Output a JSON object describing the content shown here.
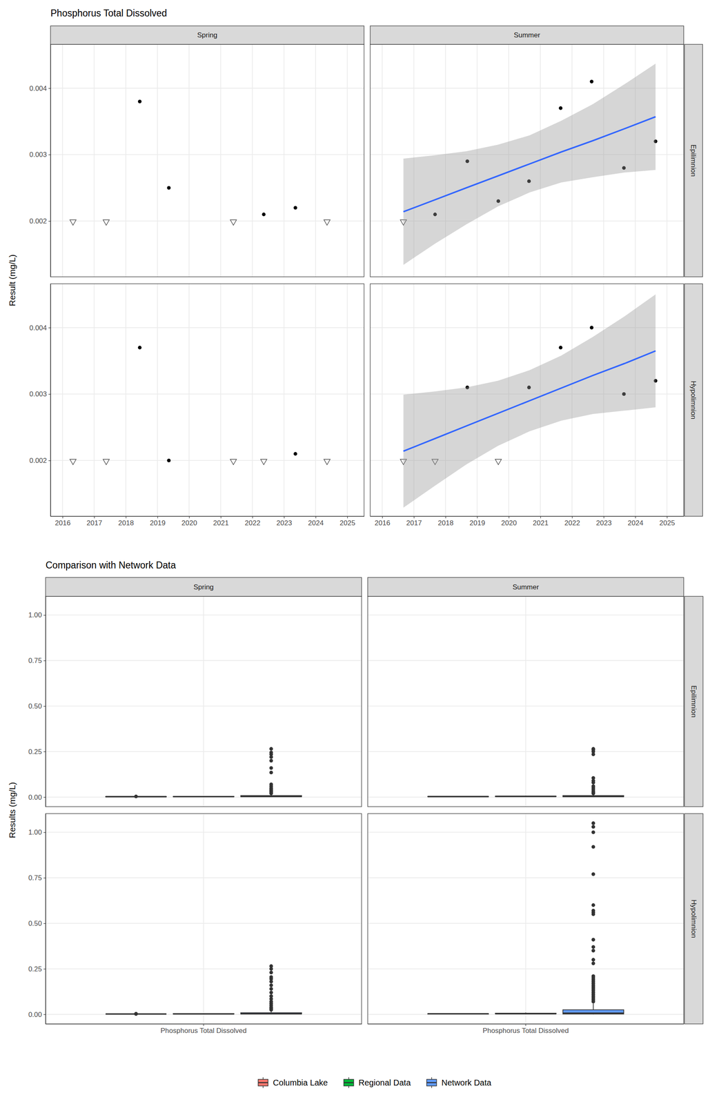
{
  "chart_data": [
    {
      "type": "scatter",
      "title": "Phosphorus Total Dissolved",
      "y_label": "Result (mg/L)",
      "facet_cols": [
        "Spring",
        "Summer"
      ],
      "facet_rows": [
        "Epilimnion",
        "Hypolimnion"
      ],
      "xlim": [
        2015.62,
        2025.53
      ],
      "xticks": [
        2016,
        2017,
        2018,
        2019,
        2020,
        2021,
        2022,
        2023,
        2024,
        2025
      ],
      "ylim": [
        0.00116,
        0.00466
      ],
      "yticks": [
        0.002,
        0.003,
        0.004
      ],
      "grid": true,
      "panels": [
        [
          {
            "series": [
              {
                "type": "scatter",
                "marker": "triangle-down",
                "color": "#4D4D4D",
                "x": [
                  2016.33,
                  2017.38,
                  2021.4,
                  2024.36
                ],
                "values": [
                  0.002,
                  0.002,
                  0.002,
                  0.002
                ]
              },
              {
                "type": "scatter",
                "marker": "circle",
                "color": "#000000",
                "x": [
                  2018.44,
                  2019.36,
                  2022.36,
                  2023.36
                ],
                "values": [
                  0.0038,
                  0.0025,
                  0.0021,
                  0.0022
                ]
              }
            ]
          },
          {
            "series": [
              {
                "type": "scatter",
                "marker": "triangle-down",
                "color": "#4D4D4D",
                "x": [
                  2016.67
                ],
                "values": [
                  0.002
                ]
              },
              {
                "type": "scatter",
                "marker": "circle",
                "color": "#000000",
                "x": [
                  2017.67,
                  2018.69,
                  2019.67,
                  2020.64,
                  2021.64,
                  2022.62,
                  2023.64,
                  2024.64
                ],
                "values": [
                  0.0021,
                  0.0029,
                  0.0023,
                  0.0026,
                  0.0037,
                  0.0041,
                  0.0028,
                  0.0032
                ]
              },
              {
                "type": "line",
                "color": "#3366FF",
                "x": [
                  2016.67,
                  2017.67,
                  2018.66,
                  2019.66,
                  2020.66,
                  2021.66,
                  2022.66,
                  2023.66,
                  2024.64
                ],
                "values": [
                  0.00214,
                  0.00232,
                  0.0025,
                  0.00268,
                  0.00286,
                  0.00304,
                  0.00321,
                  0.00339,
                  0.00357
                ],
                "lower": [
                  0.00134,
                  0.00166,
                  0.00195,
                  0.00222,
                  0.00243,
                  0.00258,
                  0.00266,
                  0.00273,
                  0.00277
                ],
                "upper": [
                  0.00294,
                  0.00299,
                  0.00305,
                  0.00315,
                  0.00329,
                  0.00351,
                  0.00376,
                  0.00406,
                  0.00437
                ]
              }
            ]
          }
        ],
        [
          {
            "series": [
              {
                "type": "scatter",
                "marker": "triangle-down",
                "color": "#4D4D4D",
                "x": [
                  2016.33,
                  2017.38,
                  2021.4,
                  2022.36,
                  2024.36
                ],
                "values": [
                  0.002,
                  0.002,
                  0.002,
                  0.002,
                  0.002
                ]
              },
              {
                "type": "scatter",
                "marker": "circle",
                "color": "#000000",
                "x": [
                  2018.44,
                  2019.36,
                  2023.36
                ],
                "values": [
                  0.0037,
                  0.002,
                  0.0021
                ]
              }
            ]
          },
          {
            "series": [
              {
                "type": "scatter",
                "marker": "triangle-down",
                "color": "#4D4D4D",
                "x": [
                  2016.67,
                  2017.67,
                  2019.67
                ],
                "values": [
                  0.002,
                  0.002,
                  0.002
                ]
              },
              {
                "type": "scatter",
                "marker": "circle",
                "color": "#000000",
                "x": [
                  2018.69,
                  2020.64,
                  2021.64,
                  2022.62,
                  2023.64,
                  2024.64
                ],
                "values": [
                  0.0031,
                  0.0031,
                  0.0037,
                  0.004,
                  0.003,
                  0.0032
                ]
              },
              {
                "type": "line",
                "color": "#3366FF",
                "x": [
                  2016.67,
                  2017.67,
                  2018.66,
                  2019.66,
                  2020.66,
                  2021.66,
                  2022.66,
                  2023.66,
                  2024.64
                ],
                "values": [
                  0.00214,
                  0.00233,
                  0.00252,
                  0.00271,
                  0.0029,
                  0.00309,
                  0.00328,
                  0.00346,
                  0.00365
                ],
                "lower": [
                  0.00129,
                  0.00162,
                  0.00194,
                  0.00222,
                  0.00244,
                  0.0026,
                  0.0027,
                  0.00275,
                  0.0028
                ],
                "upper": [
                  0.00299,
                  0.00304,
                  0.0031,
                  0.0032,
                  0.00336,
                  0.00358,
                  0.00386,
                  0.00417,
                  0.0045
                ]
              }
            ]
          }
        ]
      ]
    },
    {
      "type": "box",
      "title": "Comparison with Network Data",
      "y_label": "Results (mg/L)",
      "facet_cols": [
        "Spring",
        "Summer"
      ],
      "facet_rows": [
        "Epilimnion",
        "Hypolimnion"
      ],
      "categories": [
        "Phosphorus Total Dissolved"
      ],
      "ylim": [
        -0.0525,
        1.1025
      ],
      "yticks": [
        {
          "value": 0,
          "label": "0.00"
        },
        0.25,
        {
          "value": 0.5,
          "label": "0.50"
        },
        0.75,
        {
          "value": 1,
          "label": "1.00"
        }
      ],
      "grid": true,
      "legend": "bottom",
      "series": [
        {
          "name": "Columbia Lake",
          "color": "#F8766D"
        },
        {
          "name": "Regional Data",
          "color": "#00BA38"
        },
        {
          "name": "Network Data",
          "color": "#619CFF"
        }
      ],
      "panels": [
        [
          {
            "boxes": [
              [
                {
                  "min": 0.002,
                  "q1": 0.002,
                  "median": 0.00205,
                  "q3": 0.00228,
                  "max": 0.0025,
                  "outliers": [
                    0.0038
                  ]
                },
                {
                  "min": 0.001,
                  "q1": 0.002,
                  "median": 0.0025,
                  "q3": 0.0035,
                  "max": 0.005,
                  "outliers": []
                },
                {
                  "min": 0,
                  "q1": 0.002,
                  "median": 0.004,
                  "q3": 0.008,
                  "max": 0.017,
                  "outliers": [
                    0.265,
                    0.245,
                    0.235,
                    0.22,
                    0.2,
                    0.16,
                    0.135,
                    0.07,
                    0.06,
                    0.05,
                    0.045,
                    0.04,
                    0.035,
                    0.03,
                    0.025,
                    0.02
                  ]
                }
              ]
            ]
          },
          {
            "boxes": [
              [
                {
                  "min": 0.002,
                  "q1": 0.0023,
                  "median": 0.0028,
                  "q3": 0.0032,
                  "max": 0.0041,
                  "outliers": []
                },
                {
                  "min": 0.001,
                  "q1": 0.003,
                  "median": 0.004,
                  "q3": 0.005,
                  "max": 0.007,
                  "outliers": []
                },
                {
                  "min": 0,
                  "q1": 0.002,
                  "median": 0.004,
                  "q3": 0.008,
                  "max": 0.017,
                  "outliers": [
                    0.265,
                    0.26,
                    0.25,
                    0.235,
                    0.105,
                    0.09,
                    0.08,
                    0.06,
                    0.05,
                    0.04,
                    0.03,
                    0.025,
                    0.02
                  ]
                }
              ]
            ]
          }
        ],
        [
          {
            "boxes": [
              [
                {
                  "min": 0.002,
                  "q1": 0.002,
                  "median": 0.002,
                  "q3": 0.002,
                  "max": 0.002,
                  "outliers": [
                    0.0021,
                    0.0037
                  ]
                },
                {
                  "min": 0.001,
                  "q1": 0.002,
                  "median": 0.0025,
                  "q3": 0.0035,
                  "max": 0.005,
                  "outliers": []
                },
                {
                  "min": 0,
                  "q1": 0.002,
                  "median": 0.004,
                  "q3": 0.009,
                  "max": 0.019,
                  "outliers": [
                    0.265,
                    0.25,
                    0.23,
                    0.205,
                    0.195,
                    0.18,
                    0.16,
                    0.14,
                    0.12,
                    0.1,
                    0.085,
                    0.07,
                    0.06,
                    0.05,
                    0.04,
                    0.035,
                    0.03,
                    0.025
                  ]
                }
              ]
            ]
          },
          {
            "boxes": [
              [
                {
                  "min": 0.002,
                  "q1": 0.002,
                  "median": 0.0031,
                  "q3": 0.0032,
                  "max": 0.004,
                  "outliers": []
                },
                {
                  "min": 0.001,
                  "q1": 0.003,
                  "median": 0.004,
                  "q3": 0.006,
                  "max": 0.01,
                  "outliers": []
                },
                {
                  "min": 0,
                  "q1": 0.002,
                  "median": 0.006,
                  "q3": 0.025,
                  "max": 0.06,
                  "outliers": [
                    1.05,
                    1.03,
                    1.0,
                    0.92,
                    0.77,
                    0.6,
                    0.57,
                    0.56,
                    0.55,
                    0.41,
                    0.37,
                    0.35,
                    0.3,
                    0.28,
                    0.21,
                    0.2,
                    0.19,
                    0.18,
                    0.17,
                    0.16,
                    0.15,
                    0.14,
                    0.13,
                    0.12,
                    0.11,
                    0.1,
                    0.09,
                    0.08,
                    0.07
                  ]
                }
              ]
            ]
          }
        ]
      ]
    }
  ]
}
